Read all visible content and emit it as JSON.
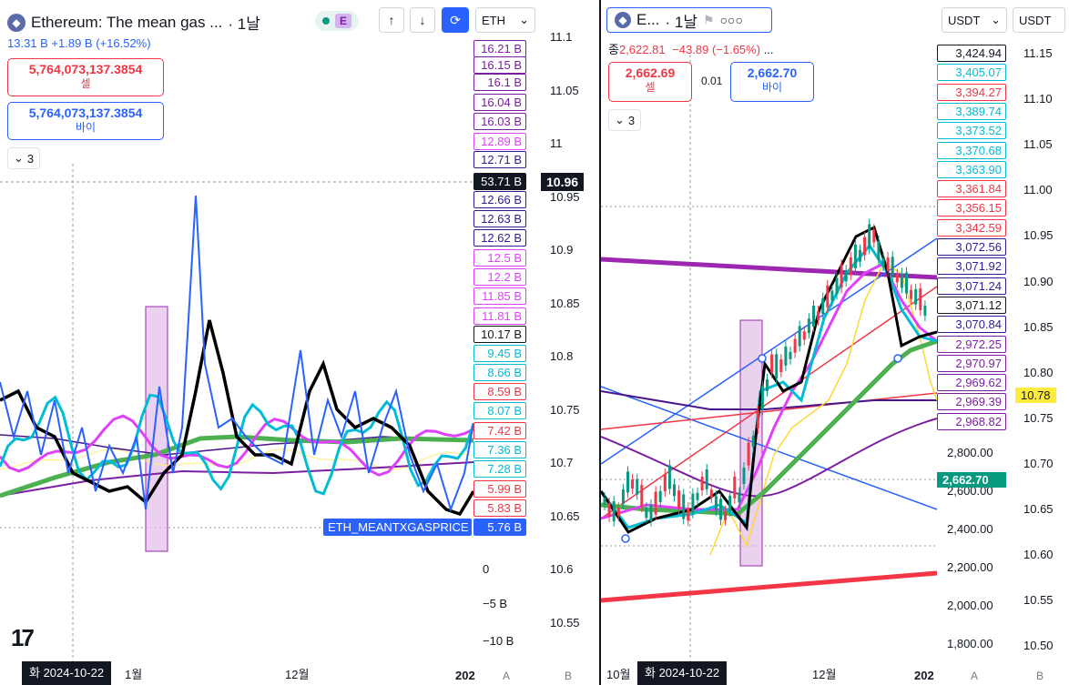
{
  "left": {
    "title": "Ethereum: The mean gas ...",
    "interval": "· 1날",
    "badge": "E",
    "currency": "ETH",
    "stats": "13.31 B  +1.89 B (+16.52%)",
    "sell_price": "5,764,073,137.3854",
    "sell_label": "셀",
    "buy_price": "5,764,073,137.3854",
    "buy_label": "바이",
    "collapse_count": "3",
    "indicator_tag": "ETH_MEANTXGASPRICE",
    "value_labels": [
      "16.21 B",
      "16.15 B",
      "16.1 B",
      "16.04 B",
      "16.03 B",
      "12.89 B",
      "12.71 B",
      "53.71 B",
      "12.66 B",
      "12.63 B",
      "12.62 B",
      "12.5 B",
      "12.2 B",
      "11.85 B",
      "11.81 B",
      "10.17 B",
      "9.45 B",
      "8.66 B",
      "8.59 B",
      "8.07 B",
      "7.42 B",
      "7.36 B",
      "7.28 B",
      "5.99 B",
      "5.83 B",
      "5.76 B"
    ],
    "inner_axis_ticks": [
      "0",
      "−5 B",
      "−10 B"
    ],
    "outer_axis_ticks": [
      "11.1",
      "11.05",
      "11",
      "10.95",
      "10.9",
      "10.85",
      "10.8",
      "10.75",
      "10.7",
      "10.65",
      "10.6",
      "10.55"
    ],
    "outer_axis_current": "10.96",
    "date_badge": "화 2024-10-22",
    "x_ticks": [
      "1월",
      "12월",
      "202"
    ],
    "logo": "17",
    "axis_modes": [
      "A",
      "B"
    ],
    "colors": {
      "blue": "#2962ff",
      "black": "#000000",
      "teal": "#00bcd4",
      "magenta": "#e040fb",
      "green": "#4caf50",
      "purple": "#7b1fa2"
    }
  },
  "right": {
    "title": "E...",
    "interval": "· 1날",
    "currency": "USDT",
    "currency_outer": "USDT",
    "stats_close_label": "종",
    "stats_close": "2,622.81",
    "stats_change": "−43.89 (−1.65%)",
    "stats_more": "...",
    "sell_price": "2,662.69",
    "sell_label": "셀",
    "spread": "0.01",
    "buy_price": "2,662.70",
    "buy_label": "바이",
    "collapse_count": "3",
    "value_labels": [
      "3,424.94",
      "3,405.07",
      "3,394.27",
      "3,389.74",
      "3,373.52",
      "3,370.68",
      "3,363.90",
      "3,361.84",
      "3,356.15",
      "3,342.59",
      "3,072.56",
      "3,071.92",
      "3,071.24",
      "3,071.12",
      "3,070.84",
      "2,972.25",
      "2,970.97",
      "2,969.62",
      "2,969.39",
      "2,968.82"
    ],
    "inner_axis_ticks": [
      "2,800.00",
      "2,600.00",
      "2,400.00",
      "2,200.00",
      "2,000.00",
      "1,800.00"
    ],
    "current_price": "2,662.70",
    "outer_axis_ticks": [
      "11.15",
      "11.10",
      "11.05",
      "11.00",
      "10.95",
      "10.90",
      "10.85",
      "10.80",
      "10.75",
      "10.70",
      "10.65",
      "10.60",
      "10.55",
      "10.50"
    ],
    "outer_axis_current": "10.78",
    "date_badge": "화 2024-10-22",
    "x_ticks": [
      "10월",
      "12월",
      "202"
    ],
    "axis_modes": [
      "A",
      "B"
    ]
  }
}
